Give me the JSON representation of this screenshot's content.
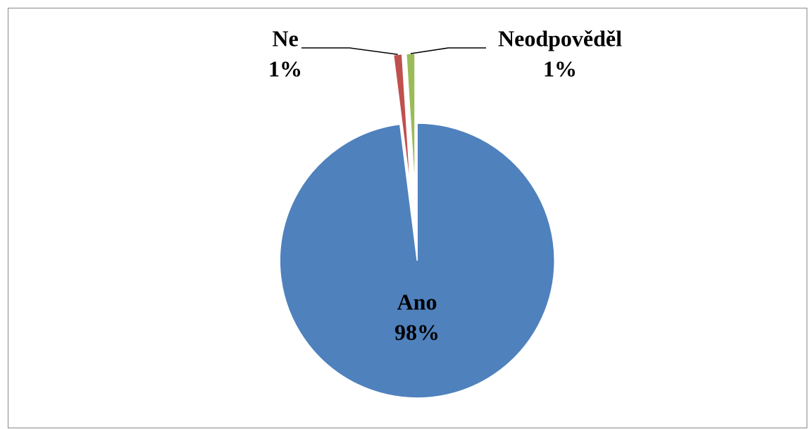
{
  "chart_data": {
    "type": "pie",
    "categories": [
      "Ano",
      "Ne",
      "Neodpověděl"
    ],
    "values": [
      98,
      1,
      1
    ],
    "value_labels": [
      "98%",
      "1%",
      "1%"
    ],
    "colors": [
      "#4f81bd",
      "#c0504d",
      "#9bbb59"
    ]
  }
}
